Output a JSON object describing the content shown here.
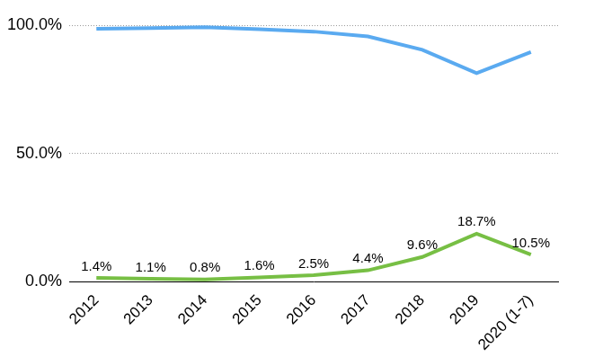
{
  "chart_data": {
    "type": "line",
    "categories": [
      "2012",
      "2013",
      "2014",
      "2015",
      "2016",
      "2017",
      "2018",
      "2019",
      "2020 (1-7)"
    ],
    "series": [
      {
        "color": "#5aaaf0",
        "values": [
          98.6,
          98.9,
          99.2,
          98.4,
          97.5,
          95.6,
          90.4,
          81.3,
          89.5
        ]
      },
      {
        "color": "#77bf44",
        "values": [
          1.4,
          1.1,
          0.8,
          1.6,
          2.5,
          4.4,
          9.6,
          18.7,
          10.5
        ],
        "value_labels": [
          "1.4%",
          "1.1%",
          "0.8%",
          "1.6%",
          "2.5%",
          "4.4%",
          "9.6%",
          "18.7%",
          "10.5%"
        ],
        "data_labels": true
      }
    ],
    "ylim": [
      0,
      100
    ],
    "yticks": [
      {
        "value": 0,
        "label": "0.0%"
      },
      {
        "value": 50,
        "label": "50.0%"
      },
      {
        "value": 100,
        "label": "100.0%"
      }
    ],
    "grid": true
  }
}
